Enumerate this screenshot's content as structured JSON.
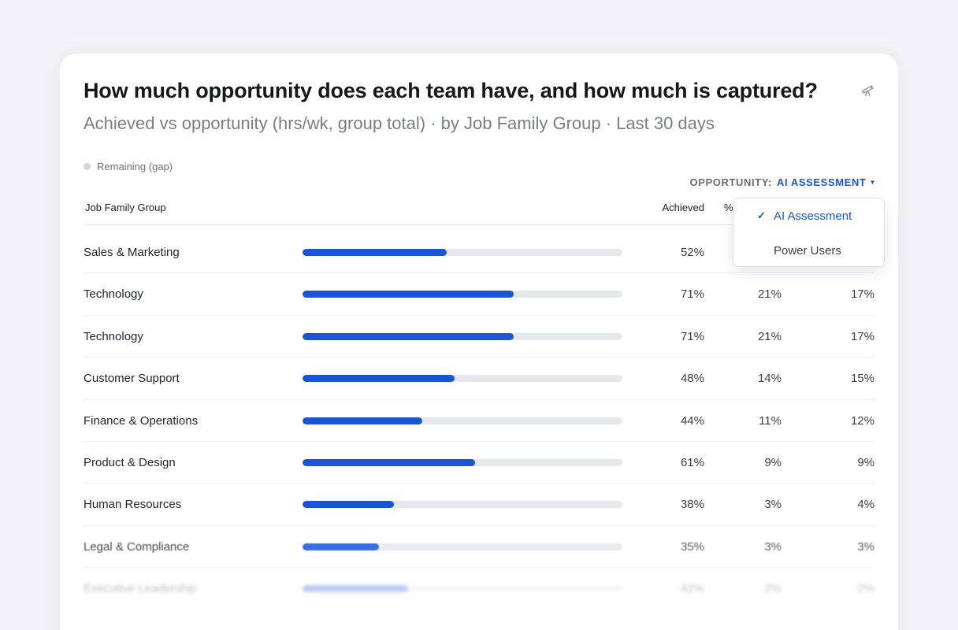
{
  "header": {
    "title": "How much opportunity does each team have, and how much is captured?",
    "subtitle": "Achieved vs opportunity (hrs/wk, group total) · by Job Family Group · Last 30 days"
  },
  "icons": {
    "corner": "telescope-icon",
    "check": "check-icon",
    "caret": "caret-down-icon"
  },
  "legend": {
    "remaining": "Remaining (gap)"
  },
  "opportunity": {
    "label": "OPPORTUNITY:",
    "value": "AI ASSESSMENT"
  },
  "table": {
    "headers": {
      "group": "Job Family Group",
      "achieved": "Achieved",
      "pct": "%"
    },
    "rows": [
      {
        "name": "Sales & Marketing",
        "achieved": "52%",
        "fill": 0.45,
        "c2": "",
        "c3": ""
      },
      {
        "name": "Technology",
        "achieved": "71%",
        "fill": 0.66,
        "c2": "21%",
        "c3": "17%"
      },
      {
        "name": "Technology",
        "achieved": "71%",
        "fill": 0.66,
        "c2": "21%",
        "c3": "17%"
      },
      {
        "name": "Customer Support",
        "achieved": "48%",
        "fill": 0.475,
        "c2": "14%",
        "c3": "15%"
      },
      {
        "name": "Finance & Operations",
        "achieved": "44%",
        "fill": 0.375,
        "c2": "11%",
        "c3": "12%"
      },
      {
        "name": "Product & Design",
        "achieved": "61%",
        "fill": 0.54,
        "c2": "9%",
        "c3": "9%"
      },
      {
        "name": "Human Resources",
        "achieved": "38%",
        "fill": 0.285,
        "c2": "3%",
        "c3": "4%"
      },
      {
        "name": "Legal & Compliance",
        "achieved": "35%",
        "fill": 0.24,
        "c2": "3%",
        "c3": "3%"
      },
      {
        "name": "Executive Leadership",
        "achieved": "42%",
        "fill": 0.33,
        "c2": "2%",
        "c3": "2%"
      }
    ]
  },
  "dropdown": {
    "selected": "AI Assessment",
    "other": "Power Users",
    "check": "✓"
  },
  "colors": {
    "accent": "#1a55d6",
    "track": "#e7e8ec",
    "muted": "#7a7d85"
  }
}
